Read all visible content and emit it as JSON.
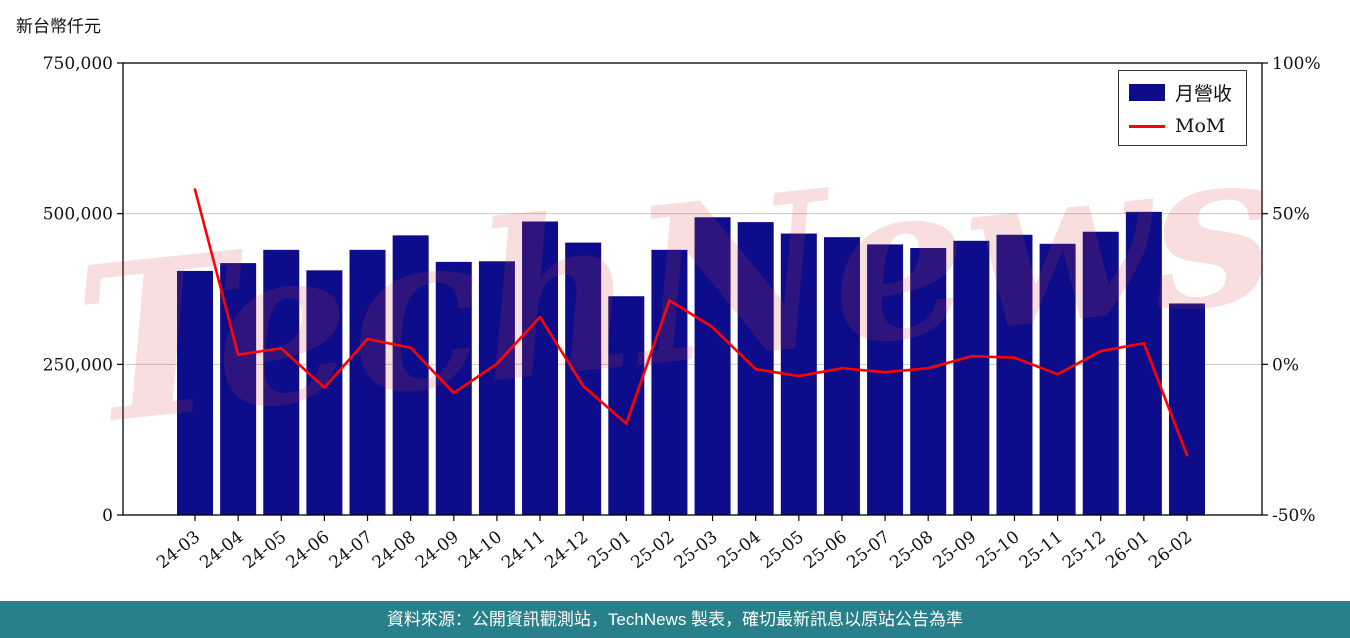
{
  "watermark": {
    "text": "TechNews"
  },
  "footer": {
    "text": "資料來源：公開資訊觀測站，TechNews 製表，確切最新訊息以原站公告為準",
    "bg_color": "#27808a"
  },
  "chart_data": {
    "type": "combo",
    "unit_label": "新台幣仟元",
    "categories": [
      "24-03",
      "24-04",
      "24-05",
      "24-06",
      "24-07",
      "24-08",
      "24-09",
      "24-10",
      "24-11",
      "24-12",
      "25-01",
      "25-02",
      "25-03",
      "25-04",
      "25-05",
      "25-06",
      "25-07",
      "25-08",
      "25-09",
      "25-10",
      "25-11",
      "25-12",
      "26-01",
      "26-02"
    ],
    "series": [
      {
        "name": "月營收",
        "type": "bar",
        "color": "#0d0d8b",
        "axis": "left",
        "values": [
          405000,
          418000,
          440000,
          406000,
          440000,
          464000,
          420000,
          421000,
          487000,
          452000,
          363000,
          440000,
          494000,
          486000,
          467000,
          461000,
          449000,
          443000,
          455000,
          465000,
          450000,
          470000,
          503000,
          351000
        ]
      },
      {
        "name": "MoM",
        "type": "line",
        "color": "#ff0000",
        "axis": "right",
        "values": [
          58,
          3.2,
          5.3,
          -7.7,
          8.4,
          5.5,
          -9.5,
          0.2,
          15.7,
          -7.2,
          -19.7,
          21.2,
          12.3,
          -1.6,
          -3.9,
          -1.3,
          -2.6,
          -1.3,
          2.7,
          2.2,
          -3.3,
          4.4,
          7.0,
          -30.2
        ]
      }
    ],
    "left_axis": {
      "min": 0,
      "max": 750000,
      "ticks": [
        {
          "value": 750000,
          "label": "750,000"
        },
        {
          "value": 500000,
          "label": "500,000"
        },
        {
          "value": 250000,
          "label": "250,000"
        },
        {
          "value": 0,
          "label": "0"
        }
      ]
    },
    "right_axis": {
      "min": -50,
      "max": 100,
      "unit": "%",
      "ticks": [
        {
          "value": 100,
          "label": "100%"
        },
        {
          "value": 50,
          "label": "50%"
        },
        {
          "value": 0,
          "label": "0%"
        },
        {
          "value": -50,
          "label": "-50%"
        }
      ]
    },
    "legend": {
      "position": "top-right",
      "items": [
        "月營收",
        "MoM"
      ]
    },
    "grid": true,
    "grid_color": "#c9c9c9"
  }
}
